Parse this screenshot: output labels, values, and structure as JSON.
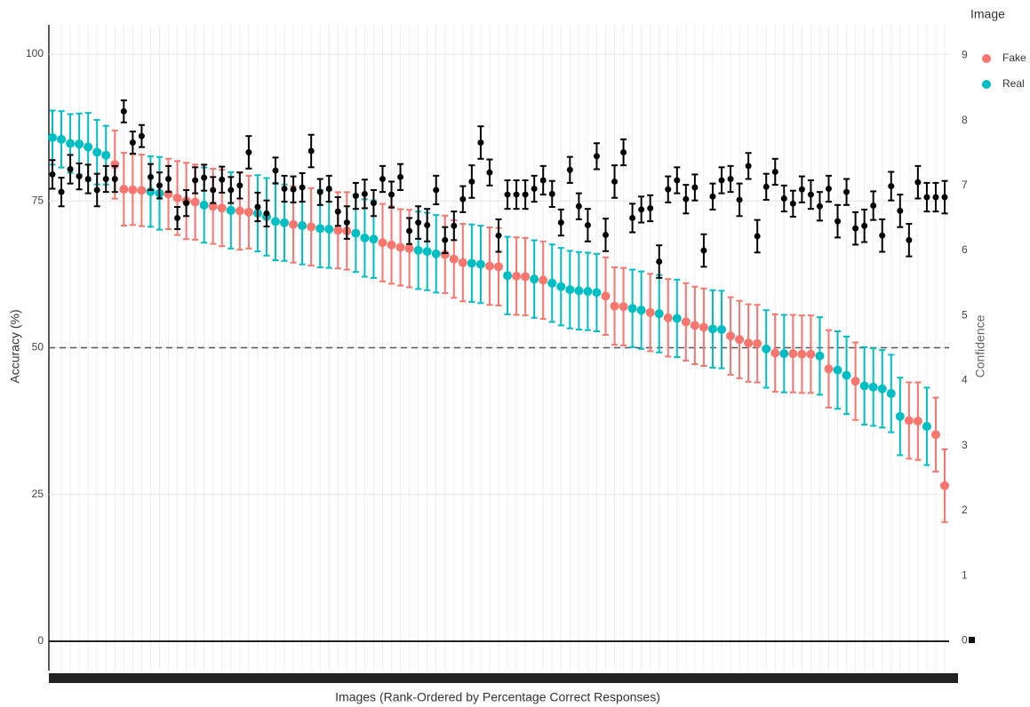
{
  "chart_data": {
    "type": "errorbar-scatter",
    "xlabel": "Images (Rank-Ordered by Percentage Correct Responses)",
    "ylabel": "Accuracy (%)",
    "y2label": "Confidence",
    "legend_title": "Image",
    "legend": "right",
    "grid": true,
    "ylim": [
      -5,
      105
    ],
    "yticks": [
      0,
      25,
      50,
      75,
      100
    ],
    "y2lim": [
      -0.46,
      9.47
    ],
    "y2ticks": [
      0,
      1,
      2,
      3,
      4,
      5,
      6,
      7,
      8,
      9
    ],
    "reference_line": 50,
    "series": [
      {
        "name": "Fake",
        "color": "#f8766d",
        "values": [
          null,
          null,
          null,
          null,
          null,
          null,
          null,
          81.2,
          77,
          76.9,
          76.8,
          null,
          null,
          76.2,
          75.5,
          75,
          74.8,
          null,
          74.1,
          73.8,
          null,
          73.3,
          73.1,
          null,
          null,
          null,
          null,
          71,
          null,
          70.6,
          null,
          null,
          70,
          69.9,
          null,
          null,
          null,
          67.9,
          67.5,
          67.1,
          66.9,
          null,
          null,
          null,
          65.9,
          65.1,
          64.5,
          null,
          null,
          63.9,
          63.8,
          null,
          62.2,
          62.1,
          null,
          61.5,
          null,
          null,
          null,
          null,
          null,
          null,
          58.8,
          57.1,
          57,
          null,
          null,
          56,
          null,
          55.1,
          null,
          54.4,
          53.8,
          53.5,
          null,
          null,
          52,
          51.4,
          50.8,
          50.7,
          null,
          49.1,
          null,
          49,
          48.9,
          48.9,
          null,
          46.4,
          null,
          null,
          44.3,
          null,
          null,
          null,
          null,
          null,
          37.6,
          37.5,
          null,
          35.2,
          26.5
        ],
        "errors": [
          null,
          null,
          null,
          null,
          null,
          null,
          null,
          5.8,
          6.2,
          6.0,
          6.1,
          null,
          null,
          6.0,
          6.3,
          6.5,
          6.4,
          null,
          6.4,
          6.5,
          null,
          6.6,
          6.2,
          null,
          null,
          null,
          null,
          6.5,
          null,
          6.6,
          null,
          null,
          6.5,
          6.6,
          null,
          null,
          null,
          6.6,
          6.6,
          6.5,
          6.6,
          null,
          null,
          null,
          6.6,
          6.6,
          6.6,
          null,
          null,
          6.6,
          6.6,
          null,
          6.6,
          6.6,
          null,
          6.6,
          null,
          null,
          null,
          null,
          null,
          null,
          6.6,
          6.6,
          6.6,
          null,
          null,
          6.6,
          null,
          6.6,
          null,
          6.6,
          6.6,
          6.6,
          null,
          null,
          6.6,
          6.6,
          6.6,
          6.6,
          null,
          6.6,
          null,
          6.6,
          6.6,
          6.6,
          null,
          6.6,
          null,
          null,
          6.6,
          null,
          null,
          null,
          null,
          null,
          6.5,
          6.6,
          null,
          6.3,
          6.2
        ]
      },
      {
        "name": "Real",
        "color": "#00bfc4",
        "values": [
          85.8,
          85.5,
          84.8,
          84.7,
          84.2,
          83.3,
          82.8,
          null,
          null,
          null,
          null,
          76.6,
          76.3,
          null,
          null,
          null,
          null,
          74.3,
          null,
          null,
          73.4,
          null,
          null,
          72.9,
          72.3,
          71.5,
          71.3,
          null,
          70.8,
          null,
          70.3,
          70.2,
          null,
          null,
          69.5,
          68.7,
          68.5,
          null,
          null,
          null,
          null,
          66.6,
          66.4,
          66,
          null,
          null,
          null,
          64.4,
          64.2,
          null,
          null,
          62.3,
          null,
          null,
          61.7,
          null,
          61,
          60.4,
          59.9,
          59.7,
          59.6,
          59.4,
          null,
          null,
          null,
          56.7,
          56.4,
          null,
          55.8,
          null,
          55,
          null,
          null,
          null,
          53.2,
          53.1,
          null,
          null,
          null,
          null,
          49.8,
          null,
          49,
          null,
          null,
          null,
          48.6,
          null,
          46.2,
          45.3,
          null,
          43.5,
          43.3,
          43,
          42.2,
          38.3,
          null,
          null,
          36.6,
          null,
          null
        ],
        "errors": [
          4.6,
          4.8,
          5.0,
          5.2,
          5.8,
          5.5,
          5.0,
          null,
          null,
          null,
          null,
          6.0,
          6.2,
          null,
          null,
          null,
          null,
          6.4,
          null,
          null,
          6.5,
          null,
          null,
          6.5,
          6.6,
          6.6,
          6.5,
          null,
          6.6,
          null,
          6.6,
          6.6,
          null,
          null,
          6.6,
          6.6,
          6.6,
          null,
          null,
          null,
          null,
          6.6,
          6.6,
          6.6,
          null,
          null,
          null,
          6.6,
          6.6,
          null,
          null,
          6.6,
          null,
          null,
          6.6,
          null,
          6.6,
          6.6,
          6.6,
          6.6,
          6.6,
          6.6,
          null,
          null,
          null,
          6.6,
          6.6,
          null,
          6.6,
          null,
          6.6,
          null,
          null,
          null,
          6.6,
          6.6,
          null,
          null,
          null,
          null,
          6.6,
          null,
          6.6,
          null,
          null,
          null,
          6.6,
          null,
          6.6,
          6.6,
          null,
          6.6,
          6.6,
          6.6,
          6.6,
          6.6,
          null,
          null,
          6.6,
          null,
          null
        ]
      }
    ],
    "confidence": {
      "axis": "y2",
      "color": "#000000",
      "values": [
        7.17,
        6.9,
        7.25,
        7.14,
        7.1,
        6.93,
        7.1,
        7.1,
        8.14,
        7.66,
        7.76,
        7.13,
        7.0,
        7.1,
        6.5,
        6.73,
        7.08,
        7.12,
        6.93,
        7.09,
        6.93,
        7.0,
        7.51,
        6.67,
        6.57,
        7.23,
        6.95,
        6.94,
        6.97,
        7.53,
        6.9,
        6.95,
        6.6,
        6.43,
        6.84,
        6.87,
        6.73,
        7.1,
        6.86,
        7.13,
        6.3,
        6.43,
        6.39,
        6.93,
        6.16,
        6.38,
        6.79,
        7.06,
        7.66,
        7.2,
        6.23,
        6.86,
        6.86,
        6.86,
        6.95,
        7.08,
        6.87,
        6.43,
        7.24,
        6.68,
        6.39,
        7.45,
        6.24,
        7.06,
        7.51,
        6.5,
        6.63,
        6.65,
        5.83,
        6.94,
        7.08,
        6.79,
        6.97,
        6.0,
        6.83,
        7.08,
        7.1,
        6.78,
        7.3,
        6.22,
        6.98,
        7.21,
        6.8,
        6.72,
        6.94,
        6.86,
        6.68,
        6.95,
        6.45,
        6.9,
        6.34,
        6.38,
        6.69,
        6.23,
        6.99,
        6.61,
        6.16,
        7.05,
        6.82,
        6.82,
        6.82
      ],
      "errors": [
        0.22,
        0.22,
        0.22,
        0.2,
        0.22,
        0.25,
        0.2,
        0.2,
        0.17,
        0.17,
        0.17,
        0.2,
        0.2,
        0.2,
        0.17,
        0.2,
        0.2,
        0.2,
        0.2,
        0.2,
        0.2,
        0.2,
        0.25,
        0.22,
        0.2,
        0.2,
        0.2,
        0.2,
        0.22,
        0.25,
        0.2,
        0.2,
        0.22,
        0.25,
        0.2,
        0.22,
        0.2,
        0.2,
        0.2,
        0.2,
        0.2,
        0.25,
        0.25,
        0.22,
        0.2,
        0.22,
        0.2,
        0.25,
        0.25,
        0.2,
        0.25,
        0.22,
        0.22,
        0.22,
        0.2,
        0.22,
        0.2,
        0.2,
        0.2,
        0.2,
        0.25,
        0.2,
        0.25,
        0.25,
        0.2,
        0.22,
        0.2,
        0.2,
        0.25,
        0.2,
        0.2,
        0.22,
        0.2,
        0.25,
        0.2,
        0.2,
        0.2,
        0.25,
        0.2,
        0.25,
        0.2,
        0.2,
        0.2,
        0.2,
        0.2,
        0.22,
        0.22,
        0.2,
        0.25,
        0.2,
        0.25,
        0.25,
        0.22,
        0.25,
        0.22,
        0.25,
        0.25,
        0.25,
        0.22,
        0.22,
        0.25
      ]
    }
  }
}
